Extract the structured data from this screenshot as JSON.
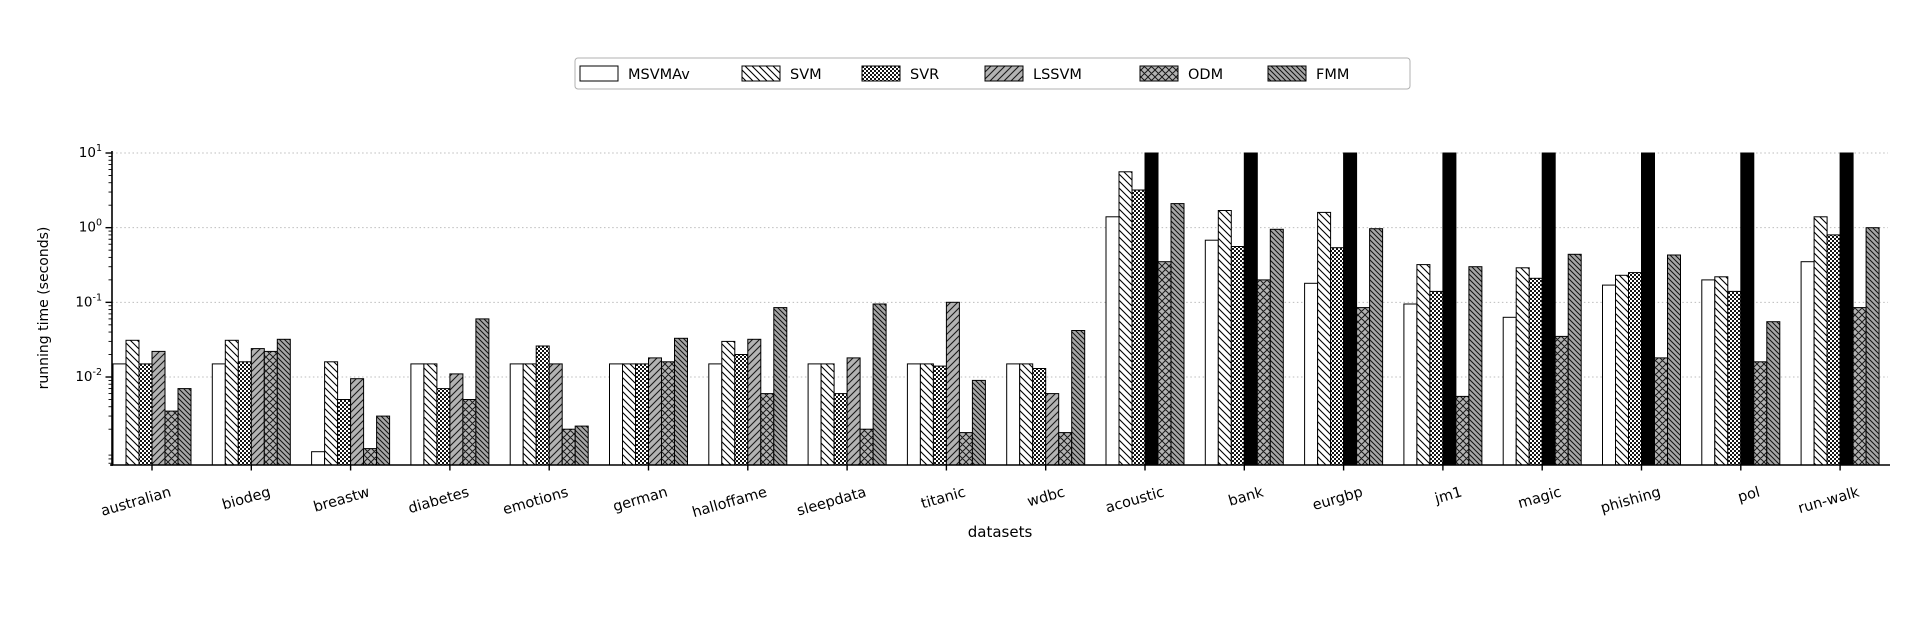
{
  "figure": {
    "background": "#ffffff"
  },
  "chart_data": {
    "type": "bar",
    "yscale": "log",
    "title": "",
    "xlabel": "datasets",
    "ylabel": "running time (seconds)",
    "ylim": [
      0.00066,
      10
    ],
    "ytick_labels": [
      "10^1",
      "10^0",
      "10^-1",
      "10^-2"
    ],
    "ytick_exponents": [
      1,
      0,
      -1,
      -2
    ],
    "grid": "horizontal-dashed",
    "legend_position": "top-center",
    "cap_value": 10,
    "cap_note": "LSSVM bars for the 8 large datasets are clipped at the 10-second axis top and drawn solid black",
    "categories": [
      "australian",
      "biodeg",
      "breastw",
      "diabetes",
      "emotions",
      "german",
      "halloffame",
      "sleepdata",
      "titanic",
      "wdbc",
      "acoustic",
      "bank",
      "eurgbp",
      "jm1",
      "magic",
      "phishing",
      "pol",
      "run-walk"
    ],
    "series": [
      {
        "name": "MSVMAv",
        "hatch": "none",
        "fill": "#ffffff",
        "values": [
          0.015,
          0.015,
          0.001,
          0.015,
          0.015,
          0.015,
          0.015,
          0.015,
          0.015,
          0.015,
          1.4,
          0.68,
          0.18,
          0.095,
          0.063,
          0.17,
          0.2,
          0.35
        ]
      },
      {
        "name": "SVM",
        "hatch": "backslash",
        "fill": "#ffffff",
        "values": [
          0.031,
          0.031,
          0.016,
          0.015,
          0.015,
          0.015,
          0.03,
          0.015,
          0.015,
          0.015,
          5.6,
          1.7,
          1.6,
          0.32,
          0.29,
          0.23,
          0.22,
          1.4
        ]
      },
      {
        "name": "SVR",
        "hatch": "checker",
        "fill": "#ffffff",
        "values": [
          0.015,
          0.016,
          0.005,
          0.007,
          0.026,
          0.015,
          0.02,
          0.006,
          0.014,
          0.013,
          3.2,
          0.56,
          0.54,
          0.14,
          0.21,
          0.25,
          0.14,
          0.8
        ]
      },
      {
        "name": "LSSVM",
        "hatch": "slash",
        "fill": "#b3b3b3",
        "values": [
          0.022,
          0.024,
          0.0095,
          0.011,
          0.015,
          0.018,
          0.032,
          0.018,
          0.1,
          0.006,
          10,
          10,
          10,
          10,
          10,
          10,
          10,
          10
        ],
        "capped": [
          false,
          false,
          false,
          false,
          false,
          false,
          false,
          false,
          false,
          false,
          true,
          true,
          true,
          true,
          true,
          true,
          true,
          true
        ]
      },
      {
        "name": "ODM",
        "hatch": "cross",
        "fill": "#b3b3b3",
        "values": [
          0.0035,
          0.022,
          0.0011,
          0.005,
          0.002,
          0.016,
          0.006,
          0.002,
          0.0018,
          0.0018,
          0.35,
          0.2,
          0.085,
          0.0055,
          0.035,
          0.018,
          0.016,
          0.085
        ]
      },
      {
        "name": "FMM",
        "hatch": "backslash-dense",
        "fill": "#a6a6a6",
        "values": [
          0.007,
          0.032,
          0.003,
          0.06,
          0.0022,
          0.033,
          0.085,
          0.095,
          0.009,
          0.042,
          2.1,
          0.95,
          0.97,
          0.3,
          0.44,
          0.43,
          0.055,
          1.0
        ]
      }
    ]
  },
  "colors": {
    "bar_edge": "#000000",
    "capped_fill": "#000000",
    "gray_fill": "#b3b3b3",
    "grid": "#bdbdbd",
    "legend_border": "#b0b0b0",
    "text": "#000000"
  }
}
